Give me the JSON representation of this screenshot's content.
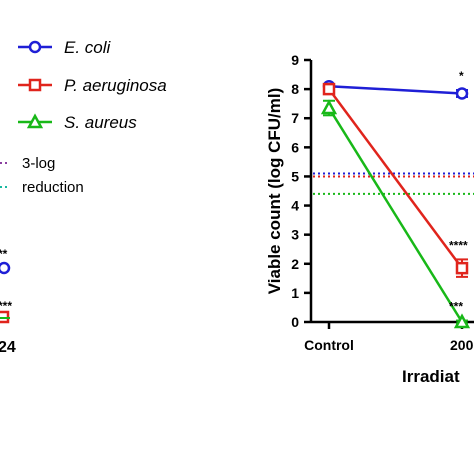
{
  "chart_data": {
    "type": "line",
    "title": "",
    "xlabel": "Irradiat",
    "ylabel": "Viable count (log CFU/ml)",
    "ylim": [
      0,
      9
    ],
    "yticks": [
      "0",
      "1",
      "2",
      "3",
      "4",
      "5",
      "6",
      "7",
      "8",
      "9"
    ],
    "categories": [
      "Control",
      "200"
    ],
    "grid": false,
    "legend_position": "top-left",
    "series": [
      {
        "name": "E. coli",
        "color": "#1f1fd6",
        "marker": "circle",
        "values": [
          8.1,
          7.85
        ],
        "error": [
          0.05,
          0.12
        ]
      },
      {
        "name": "P. aeruginosa",
        "color": "#e0241c",
        "marker": "square",
        "values": [
          8.0,
          1.85
        ],
        "error": [
          0.1,
          0.3
        ]
      },
      {
        "name": "S. aureus",
        "color": "#18b818",
        "marker": "triangle",
        "values": [
          7.35,
          0.0
        ],
        "error": [
          0.25,
          0.05
        ]
      }
    ],
    "reference_lines": [
      {
        "y": 5.1,
        "color": "#1f1fd6",
        "style": "dotted"
      },
      {
        "y": 5.0,
        "color": "#e0241c",
        "style": "dotted"
      },
      {
        "y": 4.4,
        "color": "#18b818",
        "style": "dotted"
      }
    ],
    "reference_legend": [
      "3-log",
      "reduction"
    ],
    "annotations": [
      {
        "series": "E. coli",
        "x": "200",
        "text": "*"
      },
      {
        "series": "P. aeruginosa",
        "x": "200",
        "text": "****"
      },
      {
        "series": "S. aureus",
        "x": "200",
        "text": "***"
      }
    ],
    "left_panel_fragments": {
      "stars": [
        "**",
        "***"
      ],
      "tick": "24"
    }
  }
}
